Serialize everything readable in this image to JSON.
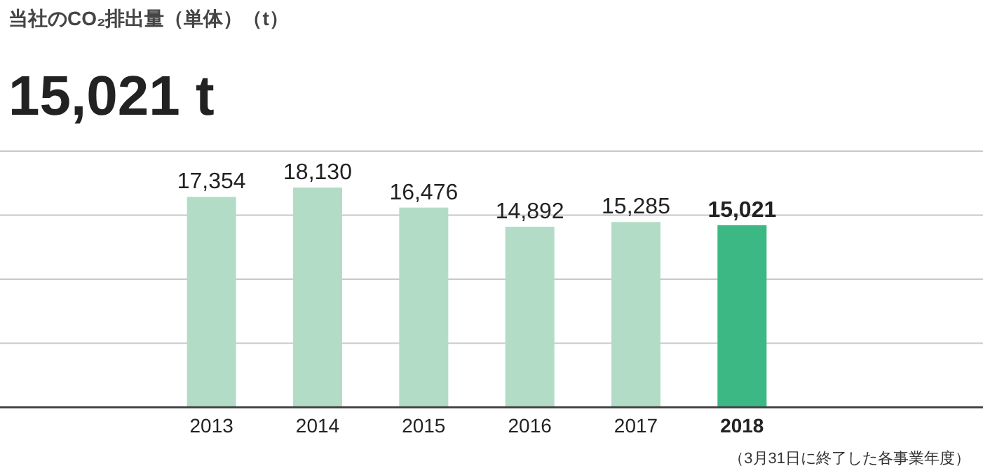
{
  "chart_data": {
    "type": "bar",
    "title": "当社のCO₂排出量（単体）（t）",
    "subtitle": "15,021 t",
    "categories": [
      "2013",
      "2014",
      "2015",
      "2016",
      "2017",
      "2018"
    ],
    "values": [
      17354,
      18130,
      16476,
      14892,
      15285,
      15021
    ],
    "colors": [
      "#b3dcc6",
      "#b3dcc6",
      "#b3dcc6",
      "#b3dcc6",
      "#b3dcc6",
      "#3bb883"
    ],
    "value_labels": [
      "17,354",
      "18,130",
      "16,476",
      "14,892",
      "15,285",
      "15,021"
    ],
    "grid": "y",
    "tick_labels": "x",
    "annotations": [
      "（3月31日に終了した各事業年度）"
    ]
  }
}
